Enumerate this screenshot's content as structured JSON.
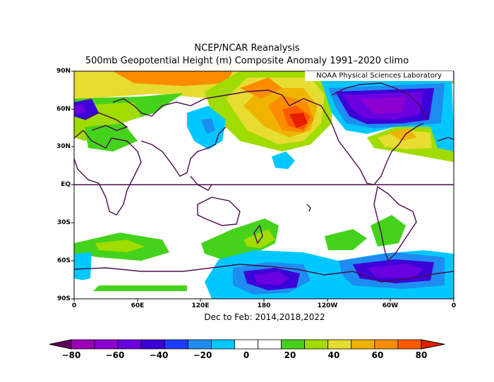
{
  "header": {
    "title": "NCEP/NCAR Reanalysis",
    "subtitle": "500mb Geopotential Height (m) Composite Anomaly 1991–2020 climo",
    "credit": "NOAA Physical Sciences Laboratory"
  },
  "map": {
    "lat_labels": [
      "90N",
      "60N",
      "30N",
      "EQ",
      "30S",
      "60S",
      "90S"
    ],
    "lon_labels": [
      "0",
      "60E",
      "120E",
      "180",
      "120W",
      "60W",
      "0"
    ],
    "period": "Dec to Feb: 2014,2018,2022",
    "variable": "500mb geopotential height anomaly",
    "units": "m"
  },
  "colorbar": {
    "labels": [
      "−80",
      "−60",
      "−40",
      "−20",
      "0",
      "20",
      "40",
      "60",
      "80"
    ],
    "colors": [
      "#610061",
      "#9a00b4",
      "#8b00d0",
      "#6a00e0",
      "#3c00d8",
      "#1e3cff",
      "#1e8cf0",
      "#00c8ff",
      "#ffffff",
      "#ffffff",
      "#45d21c",
      "#a0dc00",
      "#e6dc32",
      "#f0b400",
      "#fa8c00",
      "#ff5a00",
      "#e61e00"
    ]
  }
}
